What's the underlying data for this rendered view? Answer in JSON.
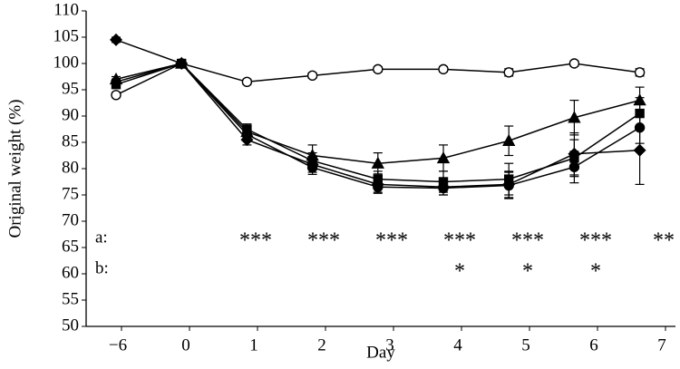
{
  "chart_data": {
    "type": "line",
    "ylabel": "Original weight (%)",
    "xlabel": "Day",
    "categories": [
      "−6",
      "0",
      "1",
      "2",
      "3",
      "4",
      "5",
      "6",
      "7"
    ],
    "ylim": [
      50,
      110
    ],
    "yticks": [
      50,
      55,
      60,
      65,
      70,
      75,
      80,
      85,
      90,
      95,
      100,
      105,
      110
    ],
    "series": [
      {
        "color": "#000",
        "marker": "open-circle",
        "values": [
          94,
          100,
          96.5,
          97.7,
          98.9,
          98.9,
          98.3,
          100,
          98.3
        ],
        "errors": [
          0.5,
          0.5,
          0.5,
          0.5,
          0.5,
          0.5,
          0.7,
          0.5,
          0.7
        ]
      },
      {
        "color": "#000",
        "marker": "triangle",
        "values": [
          97,
          100,
          87,
          82.5,
          81,
          82,
          85.3,
          89.7,
          93
        ],
        "errors": [
          0.5,
          0.5,
          1,
          2,
          2,
          2.5,
          2.8,
          3.3,
          2.5
        ]
      },
      {
        "color": "#000",
        "marker": "diamond",
        "values": [
          104.5,
          100,
          85.5,
          80.8,
          77,
          76.5,
          77,
          82.8,
          83.5
        ],
        "errors": [
          0.5,
          0.5,
          1,
          1.5,
          1.5,
          1.5,
          2.5,
          4,
          6.5
        ]
      },
      {
        "color": "#000",
        "marker": "filled-circle",
        "values": [
          96.5,
          100,
          86.5,
          80.2,
          76.5,
          76.3,
          76.8,
          80.3,
          87.8
        ],
        "errors": [
          0.5,
          0.5,
          1,
          1.3,
          1.2,
          1.3,
          2.5,
          3,
          3
        ]
      },
      {
        "color": "#000",
        "marker": "square",
        "values": [
          96,
          100,
          87.5,
          81.5,
          78,
          77.5,
          78,
          82,
          90.5
        ],
        "errors": [
          0.5,
          0.5,
          1,
          1.5,
          1.5,
          2,
          3,
          3.5,
          3
        ]
      }
    ],
    "annotations": [
      {
        "label": "a:",
        "marks": [
          null,
          null,
          "***",
          "***",
          "***",
          "***",
          "***",
          "***",
          "**"
        ]
      },
      {
        "label": "b:",
        "marks": [
          null,
          null,
          null,
          null,
          null,
          "*",
          "*",
          "*",
          null
        ]
      }
    ]
  }
}
